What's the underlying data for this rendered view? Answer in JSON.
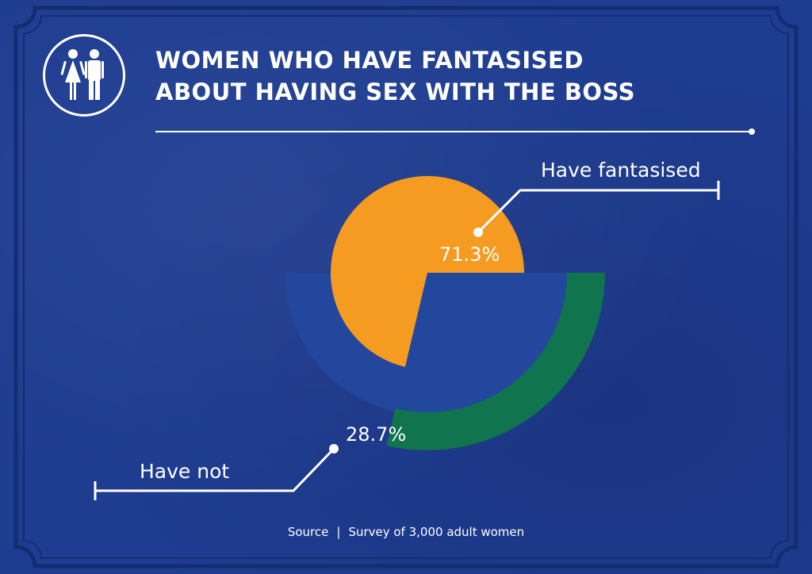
{
  "header": {
    "title_line1": "WOMEN WHO HAVE FANTASISED",
    "title_line2": "ABOUT HAVING SEX WITH THE BOSS",
    "icon": "man-and-woman-icon"
  },
  "chart_data": {
    "type": "pie",
    "title": "WOMEN WHO HAVE FANTASISED ABOUT HAVING SEX WITH THE BOSS",
    "slices": [
      {
        "label": "Have fantasised",
        "value": 71.3,
        "value_label": "71.3%",
        "color": "#f59b22"
      },
      {
        "label": "Have not",
        "value": 28.7,
        "value_label": "28.7%",
        "color": "#10744f"
      }
    ],
    "ring_color": "#22479c"
  },
  "footer": {
    "source_label": "Source",
    "separator": "|",
    "source_text": "Survey of 3,000 adult women"
  },
  "colors": {
    "background": "#1e3c90",
    "frame": "#142d70",
    "text": "#ffffff"
  }
}
